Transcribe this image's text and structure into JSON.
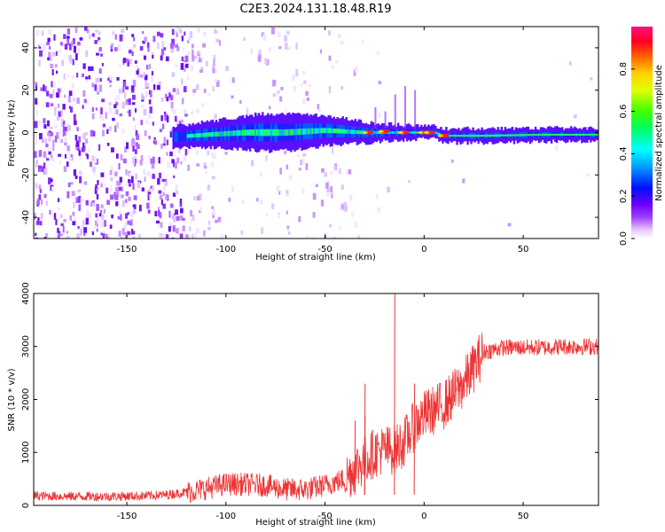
{
  "title": "C2E3.2024.131.18.48.R19",
  "chart_data": [
    {
      "type": "heatmap",
      "xlabel": "Height of straight line (km)",
      "ylabel": "Frequency (Hz)",
      "xlim": [
        -197,
        88
      ],
      "ylim": [
        -50,
        50
      ],
      "xticks": [
        -150,
        -100,
        -50,
        0,
        50
      ],
      "yticks": [
        -40,
        -20,
        0,
        20,
        40
      ],
      "colorbar": {
        "label": "Normalized spectral amplitude",
        "range": [
          0,
          1
        ],
        "ticks": [
          0.0,
          0.2,
          0.4,
          0.6,
          0.8
        ]
      },
      "band_center_hz": [
        [
          -125,
          -2
        ],
        [
          -110,
          -1
        ],
        [
          -90,
          0
        ],
        [
          -70,
          0
        ],
        [
          -50,
          1
        ],
        [
          -30,
          0
        ],
        [
          -15,
          0
        ],
        [
          0,
          0
        ],
        [
          5,
          0
        ],
        [
          10,
          -1.5
        ],
        [
          30,
          -1.5
        ],
        [
          60,
          -1
        ],
        [
          88,
          -1
        ]
      ],
      "band_halfwidth_hz": [
        [
          -125,
          4
        ],
        [
          -100,
          6
        ],
        [
          -80,
          8
        ],
        [
          -60,
          7
        ],
        [
          -40,
          5
        ],
        [
          -20,
          3
        ],
        [
          0,
          2
        ],
        [
          20,
          2.5
        ],
        [
          88,
          2
        ]
      ]
    },
    {
      "type": "line",
      "xlabel": "Height of straight line (km)",
      "ylabel": "SNR (10 * v/v)",
      "xlim": [
        -197,
        88
      ],
      "ylim": [
        0,
        4000
      ],
      "xticks": [
        -150,
        -100,
        -50,
        0,
        50
      ],
      "yticks": [
        0,
        1000,
        2000,
        3000,
        4000
      ],
      "series": [
        {
          "color": "#ee3333",
          "trend": [
            [
              -197,
              180
            ],
            [
              -180,
              170
            ],
            [
              -160,
              170
            ],
            [
              -140,
              180
            ],
            [
              -130,
              200
            ],
            [
              -120,
              250
            ],
            [
              -110,
              320
            ],
            [
              -100,
              400
            ],
            [
              -90,
              400
            ],
            [
              -80,
              380
            ],
            [
              -70,
              300
            ],
            [
              -60,
              300
            ],
            [
              -50,
              380
            ],
            [
              -40,
              500
            ],
            [
              -35,
              700
            ],
            [
              -30,
              850
            ],
            [
              -25,
              1000
            ],
            [
              -20,
              1050
            ],
            [
              -15,
              1050
            ],
            [
              -10,
              1200
            ],
            [
              -5,
              1500
            ],
            [
              0,
              1700
            ],
            [
              5,
              1800
            ],
            [
              10,
              1900
            ],
            [
              15,
              2100
            ],
            [
              20,
              2300
            ],
            [
              25,
              2600
            ],
            [
              30,
              2900
            ],
            [
              40,
              2980
            ],
            [
              50,
              2980
            ],
            [
              60,
              2980
            ],
            [
              70,
              3000
            ],
            [
              88,
              3000
            ]
          ],
          "spikes": [
            [
              -15,
              4000
            ],
            [
              -30,
              1700
            ],
            [
              -35,
              1600
            ],
            [
              -30,
              2300
            ],
            [
              -5,
              2300
            ]
          ]
        }
      ]
    }
  ]
}
